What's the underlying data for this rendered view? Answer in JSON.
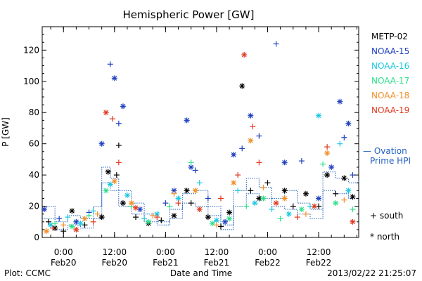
{
  "chart_data": {
    "type": "scatter",
    "title": "Hemispheric Power [GW]",
    "xlabel": "Date and Time",
    "ylabel": "P [GW]",
    "xlim": [
      "2013-02-19T19:00",
      "2013-02-22T21:25"
    ],
    "ylim": [
      0,
      135
    ],
    "yticks": [
      0,
      20,
      40,
      60,
      80,
      100,
      120
    ],
    "xticks": [
      {
        "x": "2013-02-20T00:00",
        "time": "0:00",
        "date": "Feb20"
      },
      {
        "x": "2013-02-20T12:00",
        "time": "12:00",
        "date": "Feb20"
      },
      {
        "x": "2013-02-21T00:00",
        "time": "0:00",
        "date": "Feb21"
      },
      {
        "x": "2013-02-21T12:00",
        "time": "12:00",
        "date": "Feb21"
      },
      {
        "x": "2013-02-22T00:00",
        "time": "0:00",
        "date": "Feb22"
      },
      {
        "x": "2013-02-22T12:00",
        "time": "12:00",
        "date": "Feb22"
      }
    ],
    "legend_placement": "right",
    "legend": [
      {
        "name": "METP-02",
        "color": "#000000"
      },
      {
        "name": "NOAA-15",
        "color": "#1f3fbf"
      },
      {
        "name": "NOAA-16",
        "color": "#1fc8e0"
      },
      {
        "name": "NOAA-17",
        "color": "#2ee08a"
      },
      {
        "name": "NOAA-18",
        "color": "#f0902a"
      },
      {
        "name": "NOAA-19",
        "color": "#e03a20"
      }
    ],
    "ovation_label": [
      "— Ovation",
      "Prime HPI"
    ],
    "ovation_color": "#2060c0",
    "marker_key": [
      {
        "symbol": "+",
        "label": "south"
      },
      {
        "symbol": "*",
        "label": "north"
      }
    ],
    "series": [
      {
        "name": "METP-02",
        "color": "#000000",
        "points": [
          [
            "2013-02-19T20:30",
            10,
            "+"
          ],
          [
            "2013-02-19T22:00",
            6,
            "*"
          ],
          [
            "2013-02-20T00:00",
            4,
            "+"
          ],
          [
            "2013-02-20T02:00",
            17,
            "*"
          ],
          [
            "2013-02-20T05:00",
            8,
            "+"
          ],
          [
            "2013-02-20T09:00",
            13,
            "*"
          ],
          [
            "2013-02-20T10:30",
            42,
            "*"
          ],
          [
            "2013-02-20T12:30",
            40,
            "+"
          ],
          [
            "2013-02-20T13:00",
            59,
            "+"
          ],
          [
            "2013-02-20T14:00",
            22,
            "*"
          ],
          [
            "2013-02-20T17:00",
            13,
            "+"
          ],
          [
            "2013-02-20T20:00",
            9,
            "*"
          ],
          [
            "2013-02-20T23:00",
            11,
            "+"
          ],
          [
            "2013-02-21T02:00",
            14,
            "*"
          ],
          [
            "2013-02-21T05:00",
            30,
            "*"
          ],
          [
            "2013-02-21T06:00",
            22,
            "+"
          ],
          [
            "2013-02-21T10:00",
            13,
            "*"
          ],
          [
            "2013-02-21T13:00",
            7,
            "+"
          ],
          [
            "2013-02-21T15:00",
            16,
            "*"
          ],
          [
            "2013-02-21T18:00",
            97,
            "*"
          ],
          [
            "2013-02-21T20:00",
            30,
            "+"
          ],
          [
            "2013-02-21T22:00",
            25,
            "*"
          ],
          [
            "2013-02-22T00:00",
            35,
            "+"
          ],
          [
            "2013-02-22T04:00",
            30,
            "*"
          ],
          [
            "2013-02-22T06:00",
            20,
            "+"
          ],
          [
            "2013-02-22T09:00",
            28,
            "*"
          ],
          [
            "2013-02-22T12:00",
            20,
            "+"
          ],
          [
            "2013-02-22T14:00",
            40,
            "*"
          ],
          [
            "2013-02-22T16:00",
            28,
            "+"
          ],
          [
            "2013-02-22T18:00",
            38,
            "*"
          ],
          [
            "2013-02-22T20:00",
            26,
            "*"
          ]
        ]
      },
      {
        "name": "NOAA-15",
        "color": "#1f3fbf",
        "points": [
          [
            "2013-02-19T19:30",
            18,
            "*"
          ],
          [
            "2013-02-19T23:00",
            12,
            "+"
          ],
          [
            "2013-02-20T03:00",
            10,
            "*"
          ],
          [
            "2013-02-20T06:00",
            16,
            "+"
          ],
          [
            "2013-02-20T09:00",
            60,
            "*"
          ],
          [
            "2013-02-20T11:00",
            111,
            "+"
          ],
          [
            "2013-02-20T12:00",
            102,
            "*"
          ],
          [
            "2013-02-20T13:00",
            73,
            "+"
          ],
          [
            "2013-02-20T14:00",
            84,
            "*"
          ],
          [
            "2013-02-20T18:00",
            18,
            "*"
          ],
          [
            "2013-02-21T00:00",
            22,
            "+"
          ],
          [
            "2013-02-21T02:00",
            30,
            "*"
          ],
          [
            "2013-02-21T05:00",
            75,
            "*"
          ],
          [
            "2013-02-21T06:00",
            45,
            "*"
          ],
          [
            "2013-02-21T07:00",
            43,
            "+"
          ],
          [
            "2013-02-21T10:00",
            25,
            "+"
          ],
          [
            "2013-02-21T14:00",
            10,
            "*"
          ],
          [
            "2013-02-21T16:00",
            53,
            "*"
          ],
          [
            "2013-02-21T18:00",
            57,
            "+"
          ],
          [
            "2013-02-21T20:00",
            78,
            "*"
          ],
          [
            "2013-02-21T22:00",
            65,
            "+"
          ],
          [
            "2013-02-22T02:00",
            124,
            "+"
          ],
          [
            "2013-02-22T04:00",
            48,
            "*"
          ],
          [
            "2013-02-22T08:00",
            49,
            "+"
          ],
          [
            "2013-02-22T12:00",
            25,
            "*"
          ],
          [
            "2013-02-22T15:00",
            45,
            "*"
          ],
          [
            "2013-02-22T17:00",
            87,
            "*"
          ],
          [
            "2013-02-22T18:00",
            64,
            "+"
          ],
          [
            "2013-02-22T19:00",
            73,
            "*"
          ],
          [
            "2013-02-22T20:00",
            40,
            "+"
          ]
        ]
      },
      {
        "name": "NOAA-16",
        "color": "#1fc8e0",
        "points": [
          [
            "2013-02-19T21:00",
            8,
            "*"
          ],
          [
            "2013-02-20T01:00",
            13,
            "+"
          ],
          [
            "2013-02-20T04:00",
            9,
            "*"
          ],
          [
            "2013-02-20T07:00",
            17,
            "+"
          ],
          [
            "2013-02-20T11:00",
            34,
            "*"
          ],
          [
            "2013-02-20T15:00",
            27,
            "*"
          ],
          [
            "2013-02-20T19:00",
            12,
            "+"
          ],
          [
            "2013-02-20T22:00",
            15,
            "*"
          ],
          [
            "2013-02-21T03:00",
            25,
            "*"
          ],
          [
            "2013-02-21T08:00",
            35,
            "+"
          ],
          [
            "2013-02-21T12:00",
            11,
            "*"
          ],
          [
            "2013-02-21T17:00",
            30,
            "+"
          ],
          [
            "2013-02-21T21:00",
            22,
            "*"
          ],
          [
            "2013-02-22T01:00",
            18,
            "+"
          ],
          [
            "2013-02-22T05:00",
            15,
            "*"
          ],
          [
            "2013-02-22T10:00",
            20,
            "+"
          ],
          [
            "2013-02-22T12:00",
            78,
            "*"
          ],
          [
            "2013-02-22T17:00",
            60,
            "+"
          ],
          [
            "2013-02-22T19:00",
            30,
            "*"
          ]
        ]
      },
      {
        "name": "NOAA-17",
        "color": "#2ee08a",
        "points": [
          [
            "2013-02-19T22:00",
            9,
            "+"
          ],
          [
            "2013-02-20T02:00",
            7,
            "*"
          ],
          [
            "2013-02-20T06:00",
            14,
            "+"
          ],
          [
            "2013-02-20T10:00",
            30,
            "*"
          ],
          [
            "2013-02-20T16:00",
            20,
            "+"
          ],
          [
            "2013-02-20T20:00",
            10,
            "*"
          ],
          [
            "2013-02-21T01:00",
            20,
            "+"
          ],
          [
            "2013-02-21T06:00",
            48,
            "+"
          ],
          [
            "2013-02-21T11:00",
            9,
            "*"
          ],
          [
            "2013-02-21T15:00",
            12,
            "*"
          ],
          [
            "2013-02-21T19:00",
            20,
            "+"
          ],
          [
            "2013-02-21T23:00",
            25,
            "*"
          ],
          [
            "2013-02-22T03:00",
            12,
            "+"
          ],
          [
            "2013-02-22T08:00",
            18,
            "*"
          ],
          [
            "2013-02-22T13:00",
            47,
            "+"
          ],
          [
            "2013-02-22T16:00",
            22,
            "*"
          ],
          [
            "2013-02-22T20:00",
            18,
            "+"
          ]
        ]
      },
      {
        "name": "NOAA-18",
        "color": "#f0902a",
        "points": [
          [
            "2013-02-19T20:00",
            4,
            "*"
          ],
          [
            "2013-02-20T00:00",
            8,
            "+"
          ],
          [
            "2013-02-20T05:00",
            12,
            "*"
          ],
          [
            "2013-02-20T08:00",
            15,
            "+"
          ],
          [
            "2013-02-20T12:00",
            36,
            "*"
          ],
          [
            "2013-02-20T16:00",
            22,
            "*"
          ],
          [
            "2013-02-20T21:00",
            14,
            "+"
          ],
          [
            "2013-02-21T02:00",
            28,
            "+"
          ],
          [
            "2013-02-21T07:00",
            30,
            "*"
          ],
          [
            "2013-02-21T12:00",
            8,
            "+"
          ],
          [
            "2013-02-21T16:00",
            35,
            "*"
          ],
          [
            "2013-02-21T20:00",
            62,
            "*"
          ],
          [
            "2013-02-21T23:00",
            32,
            "+"
          ],
          [
            "2013-02-22T04:00",
            25,
            "*"
          ],
          [
            "2013-02-22T09:00",
            15,
            "+"
          ],
          [
            "2013-02-22T14:00",
            54,
            "*"
          ],
          [
            "2013-02-22T18:00",
            24,
            "+"
          ]
        ]
      },
      {
        "name": "NOAA-19",
        "color": "#e03a20",
        "points": [
          [
            "2013-02-19T21:30",
            6,
            "+"
          ],
          [
            "2013-02-20T03:00",
            5,
            "*"
          ],
          [
            "2013-02-20T07:00",
            10,
            "+"
          ],
          [
            "2013-02-20T10:00",
            80,
            "*"
          ],
          [
            "2013-02-20T11:30",
            76,
            "+"
          ],
          [
            "2013-02-20T13:00",
            48,
            "+"
          ],
          [
            "2013-02-20T17:00",
            19,
            "*"
          ],
          [
            "2013-02-20T22:00",
            13,
            "+"
          ],
          [
            "2013-02-21T03:00",
            22,
            "+"
          ],
          [
            "2013-02-21T08:00",
            18,
            "*"
          ],
          [
            "2013-02-21T13:00",
            25,
            "+"
          ],
          [
            "2013-02-21T17:00",
            40,
            "+"
          ],
          [
            "2013-02-21T18:30",
            117,
            "*"
          ],
          [
            "2013-02-21T20:30",
            71,
            "+"
          ],
          [
            "2013-02-21T22:00",
            48,
            "+"
          ],
          [
            "2013-02-22T02:00",
            22,
            "*"
          ],
          [
            "2013-02-22T07:00",
            13,
            "+"
          ],
          [
            "2013-02-22T11:00",
            20,
            "*"
          ],
          [
            "2013-02-22T14:00",
            58,
            "+"
          ],
          [
            "2013-02-22T20:00",
            10,
            "*"
          ]
        ]
      }
    ],
    "ovation_south": [
      [
        "2013-02-19T19:00",
        20
      ],
      [
        "2013-02-19T22:00",
        10
      ],
      [
        "2013-02-20T01:00",
        14
      ],
      [
        "2013-02-20T04:00",
        12
      ],
      [
        "2013-02-20T07:00",
        20
      ],
      [
        "2013-02-20T09:00",
        45
      ],
      [
        "2013-02-20T11:00",
        38
      ],
      [
        "2013-02-20T13:00",
        30
      ],
      [
        "2013-02-20T16:00",
        22
      ],
      [
        "2013-02-20T19:00",
        15
      ],
      [
        "2013-02-20T22:00",
        10
      ],
      [
        "2013-02-21T01:00",
        18
      ],
      [
        "2013-02-21T04:00",
        28
      ],
      [
        "2013-02-21T07:00",
        30
      ],
      [
        "2013-02-21T10:00",
        20
      ],
      [
        "2013-02-21T13:00",
        8
      ],
      [
        "2013-02-21T16:00",
        30
      ],
      [
        "2013-02-21T19:00",
        38
      ],
      [
        "2013-02-21T22:00",
        32
      ],
      [
        "2013-02-22T01:00",
        25
      ],
      [
        "2013-02-22T04:00",
        30
      ],
      [
        "2013-02-22T07:00",
        22
      ],
      [
        "2013-02-22T10:00",
        18
      ],
      [
        "2013-02-22T13:00",
        42
      ],
      [
        "2013-02-22T16:00",
        38
      ],
      [
        "2013-02-22T19:00",
        35
      ],
      [
        "2013-02-22T21:25",
        37
      ]
    ],
    "ovation_north": [
      [
        "2013-02-19T19:00",
        12
      ],
      [
        "2013-02-19T22:00",
        5
      ],
      [
        "2013-02-20T01:00",
        8
      ],
      [
        "2013-02-20T04:00",
        6
      ],
      [
        "2013-02-20T07:00",
        12
      ],
      [
        "2013-02-20T09:00",
        35
      ],
      [
        "2013-02-20T11:00",
        30
      ],
      [
        "2013-02-20T13:00",
        20
      ],
      [
        "2013-02-20T16:00",
        15
      ],
      [
        "2013-02-20T19:00",
        10
      ],
      [
        "2013-02-20T22:00",
        8
      ],
      [
        "2013-02-21T01:00",
        12
      ],
      [
        "2013-02-21T04:00",
        22
      ],
      [
        "2013-02-21T07:00",
        20
      ],
      [
        "2013-02-21T10:00",
        14
      ],
      [
        "2013-02-21T13:00",
        5
      ],
      [
        "2013-02-21T16:00",
        20
      ],
      [
        "2013-02-21T19:00",
        28
      ],
      [
        "2013-02-21T22:00",
        25
      ],
      [
        "2013-02-22T01:00",
        20
      ],
      [
        "2013-02-22T04:00",
        18
      ],
      [
        "2013-02-22T07:00",
        15
      ],
      [
        "2013-02-22T10:00",
        12
      ],
      [
        "2013-02-22T13:00",
        30
      ],
      [
        "2013-02-22T16:00",
        28
      ],
      [
        "2013-02-22T19:00",
        25
      ],
      [
        "2013-02-22T21:25",
        25
      ]
    ]
  },
  "footer": {
    "left": "Plot: CCMC",
    "right": "2013/02/22 21:25:07"
  }
}
